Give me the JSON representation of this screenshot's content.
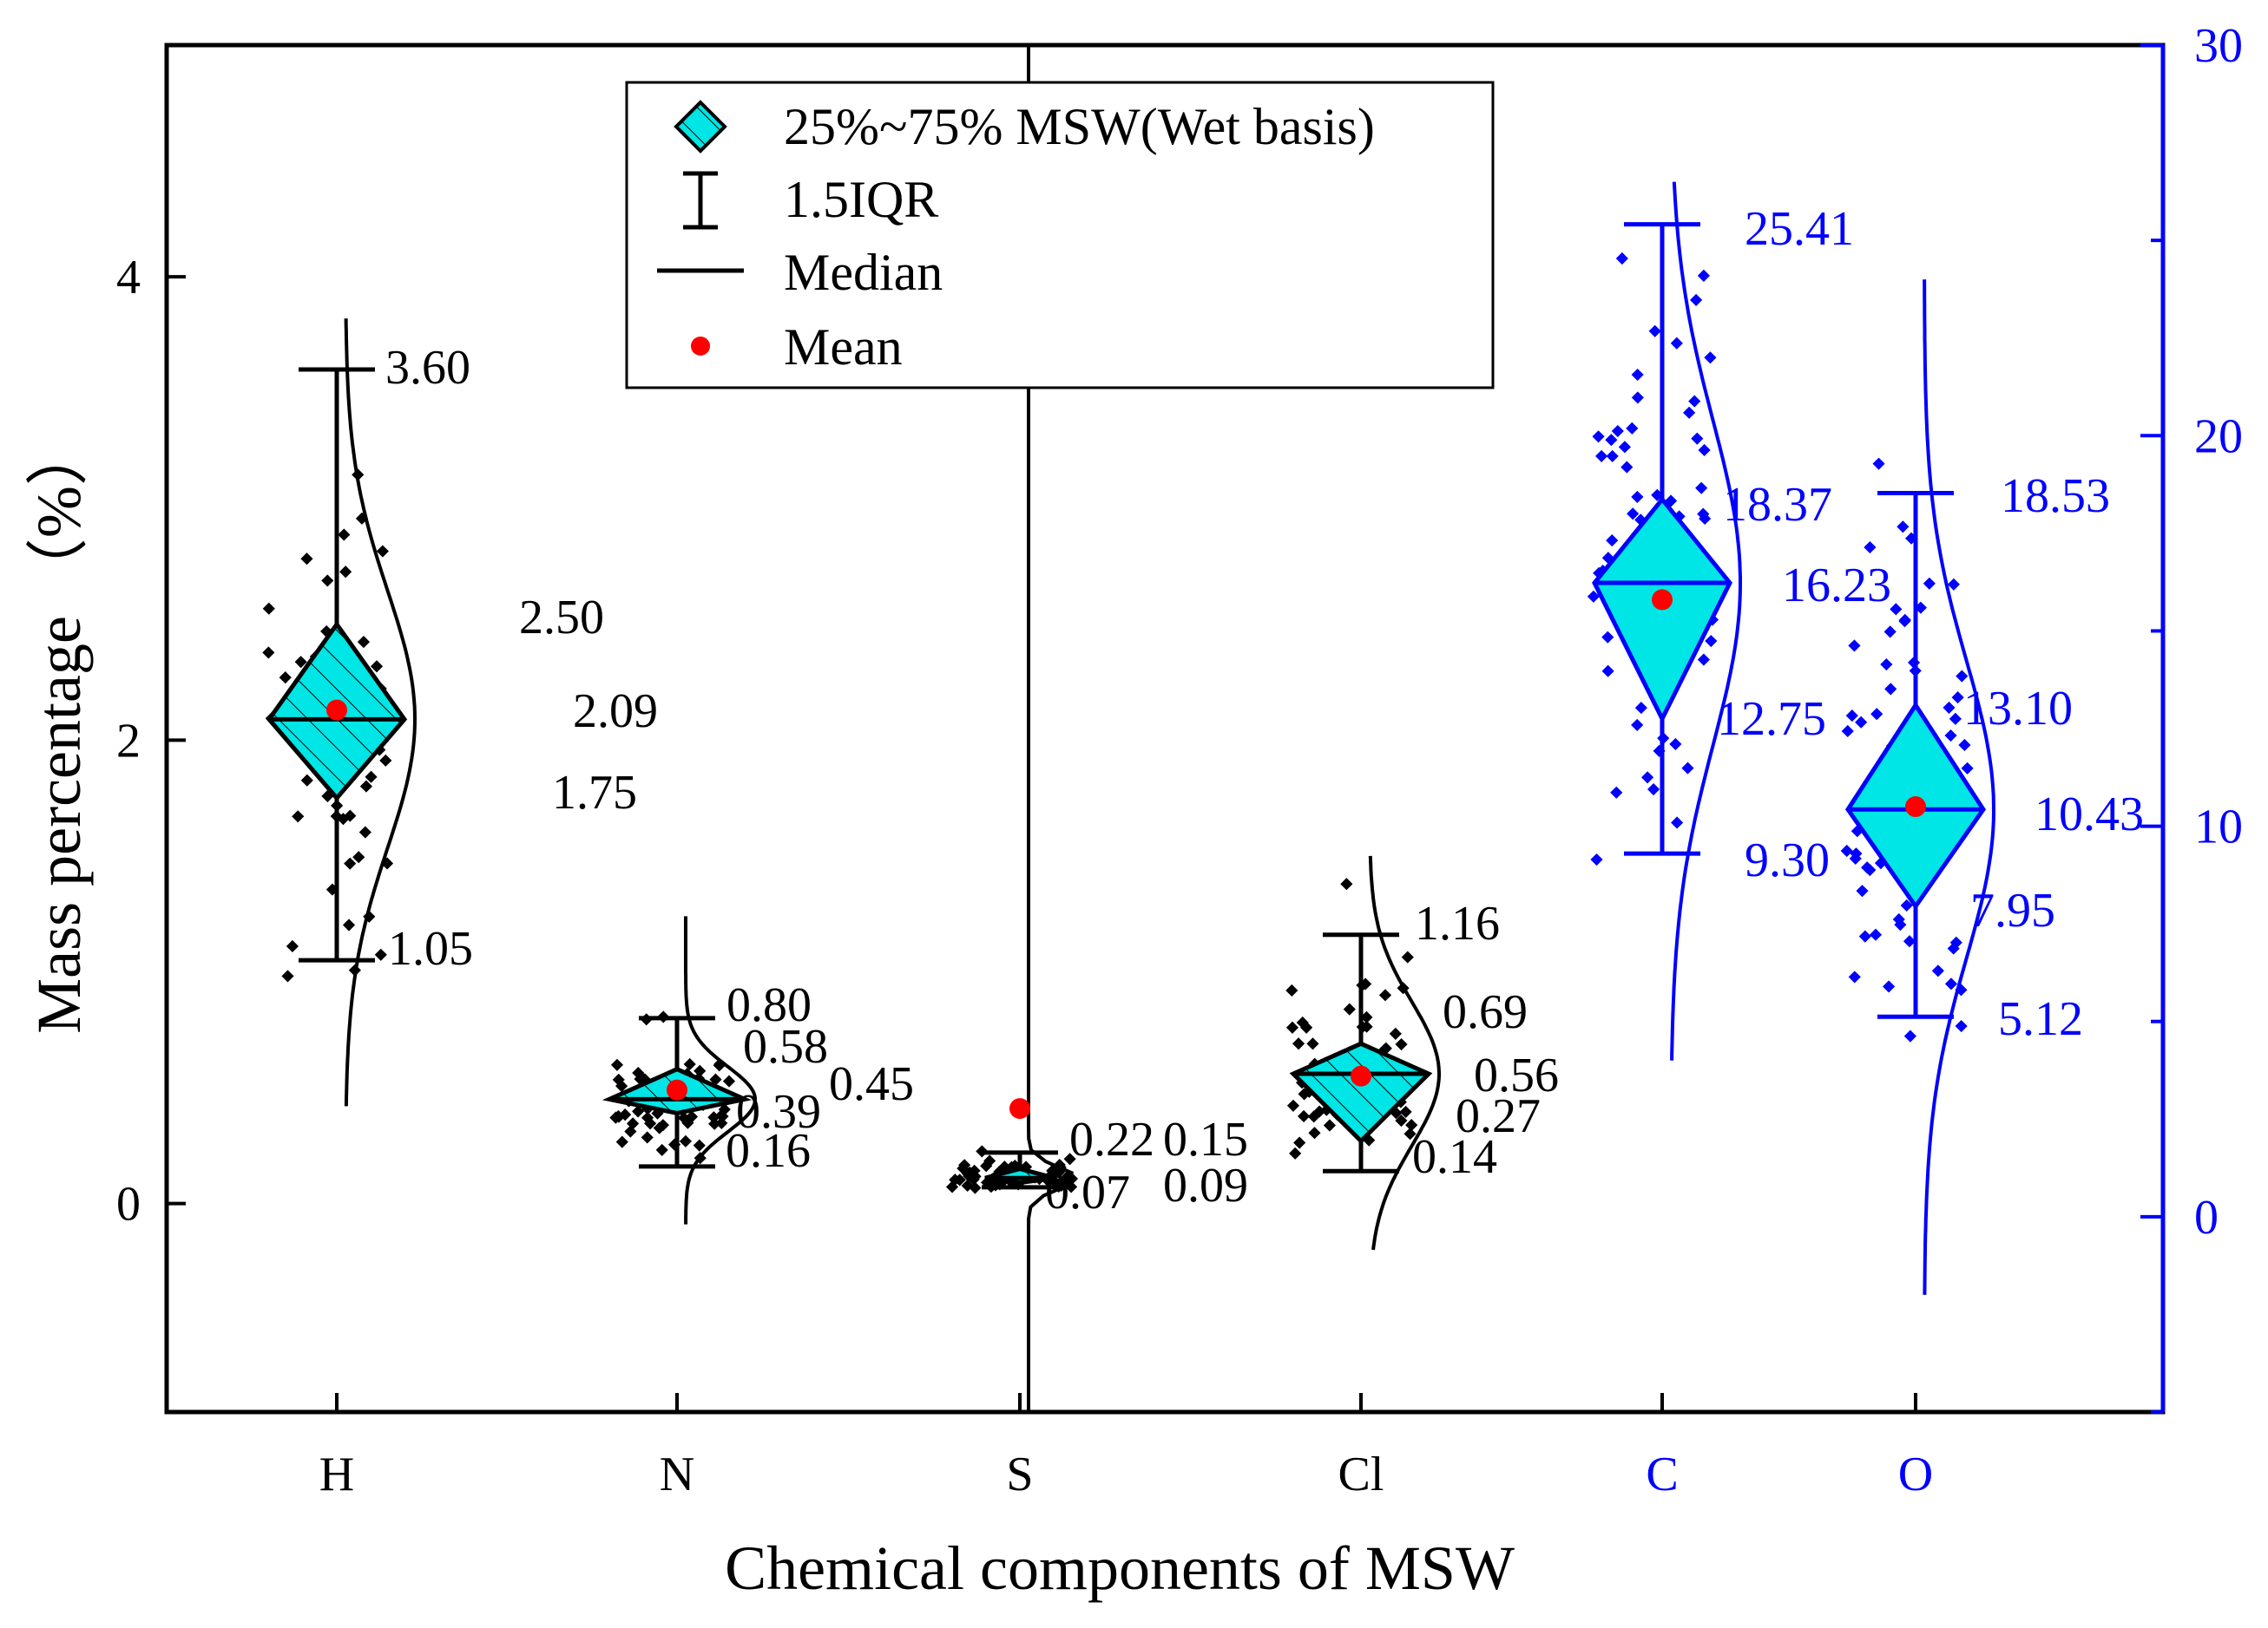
{
  "chart_data": {
    "type": "box-violin",
    "title": "",
    "xlabel": "Chemical components of MSW",
    "ylabel": "Mass percentage （%）",
    "ylim_left": [
      -0.9,
      5.0
    ],
    "ylim_right": [
      -5,
      30
    ],
    "left_ticks": [
      0,
      2,
      4
    ],
    "right_ticks": [
      0,
      10,
      20,
      30
    ],
    "colors": {
      "box_fill": "#00e5e5",
      "left_axis": "#000000",
      "right_axis": "#0000ff",
      "mean": "#ff0000"
    },
    "legend": {
      "box": "25%~75%  MSW(Wet basis)",
      "whisker": "1.5IQR",
      "median": "Median",
      "mean": "Mean"
    },
    "series": [
      {
        "name": "H",
        "axis": "left",
        "q1": 1.75,
        "median": 2.09,
        "q3": 2.5,
        "mean": 2.13,
        "lower": 1.05,
        "upper": 3.6,
        "labels": {
          "upper": "3.60",
          "q3": "2.50",
          "median": "2.09",
          "q1": "1.75",
          "lower": "1.05"
        }
      },
      {
        "name": "N",
        "axis": "left",
        "q1": 0.39,
        "median": 0.45,
        "q3": 0.58,
        "mean": 0.49,
        "lower": 0.16,
        "upper": 0.8,
        "labels": {
          "upper": "0.80",
          "q3": "0.58",
          "median": "0.45",
          "q1": "0.39",
          "lower": "0.16"
        }
      },
      {
        "name": "S",
        "axis": "left",
        "q1": 0.09,
        "median": 0.11,
        "q3": 0.15,
        "mean": 0.41,
        "lower": 0.07,
        "upper": 0.22,
        "labels": {
          "upper": "0.22",
          "q3": "0.15",
          "q1": "0.09",
          "lower": "0.07"
        }
      },
      {
        "name": "Cl",
        "axis": "left",
        "q1": 0.27,
        "median": 0.56,
        "q3": 0.69,
        "mean": 0.55,
        "lower": 0.14,
        "upper": 1.16,
        "labels": {
          "upper": "1.16",
          "q3": "0.69",
          "median": "0.56",
          "q1": "0.27",
          "lower": "0.14"
        }
      },
      {
        "name": "C",
        "axis": "right",
        "q1": 12.75,
        "median": 16.23,
        "q3": 18.37,
        "mean": 15.8,
        "lower": 9.3,
        "upper": 25.41,
        "labels": {
          "upper": "25.41",
          "q3": "18.37",
          "median": "16.23",
          "q1": "12.75",
          "lower": "9.30"
        }
      },
      {
        "name": "O",
        "axis": "right",
        "q1": 7.95,
        "median": 10.43,
        "q3": 13.1,
        "mean": 10.5,
        "lower": 5.12,
        "upper": 18.53,
        "labels": {
          "upper": "18.53",
          "q3": "13.10",
          "median": "10.43",
          "q1": "7.95",
          "lower": "5.12"
        }
      }
    ]
  }
}
